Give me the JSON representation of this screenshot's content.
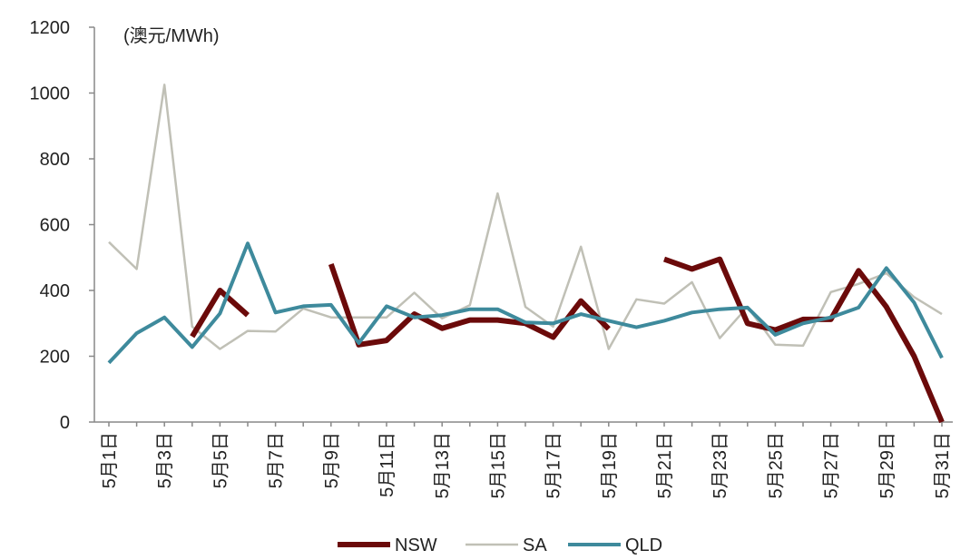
{
  "chart_data": {
    "type": "line",
    "ylabel": "(澳元/MWh)",
    "ylim": [
      0,
      1200
    ],
    "yticks": [
      0,
      200,
      400,
      600,
      800,
      1000,
      1200
    ],
    "categories": [
      "5月1日",
      "5月2日",
      "5月3日",
      "5月4日",
      "5月5日",
      "5月6日",
      "5月7日",
      "5月8日",
      "5月9日",
      "5月10日",
      "5月11日",
      "5月12日",
      "5月13日",
      "5月14日",
      "5月15日",
      "5月16日",
      "5月17日",
      "5月18日",
      "5月19日",
      "5月20日",
      "5月21日",
      "5月22日",
      "5月23日",
      "5月24日",
      "5月25日",
      "5月26日",
      "5月27日",
      "5月28日",
      "5月29日",
      "5月30日",
      "5月31日"
    ],
    "xtick_labels": [
      "5月1日",
      "5月3日",
      "5月5日",
      "5月7日",
      "5月9日",
      "5月11日",
      "5月13日",
      "5月15日",
      "5月17日",
      "5月19日",
      "5月21日",
      "5月23日",
      "5月25日",
      "5月27日",
      "5月29日",
      "5月31日"
    ],
    "series": [
      {
        "name": "NSW",
        "color": "#6b0a0a",
        "width": 6,
        "values": [
          null,
          null,
          null,
          260,
          400,
          325,
          null,
          null,
          480,
          235,
          248,
          328,
          285,
          310,
          310,
          300,
          258,
          368,
          283,
          null,
          495,
          465,
          495,
          300,
          280,
          312,
          312,
          460,
          350,
          200,
          0
        ]
      },
      {
        "name": "SA",
        "color": "#c0c0b6",
        "width": 2.5,
        "values": [
          547,
          465,
          1025,
          290,
          222,
          277,
          275,
          345,
          318,
          318,
          318,
          393,
          315,
          355,
          695,
          350,
          290,
          533,
          222,
          373,
          360,
          425,
          255,
          350,
          235,
          232,
          395,
          420,
          452,
          380,
          328
        ]
      },
      {
        "name": "QLD",
        "color": "#3e8a9c",
        "width": 4,
        "values": [
          180,
          270,
          318,
          228,
          330,
          543,
          333,
          352,
          356,
          240,
          352,
          318,
          325,
          343,
          343,
          303,
          300,
          328,
          308,
          288,
          308,
          333,
          343,
          348,
          265,
          300,
          318,
          348,
          468,
          363,
          195
        ]
      }
    ],
    "legend": [
      "NSW",
      "SA",
      "QLD"
    ],
    "legend_position": "bottom-center",
    "grid": false
  }
}
